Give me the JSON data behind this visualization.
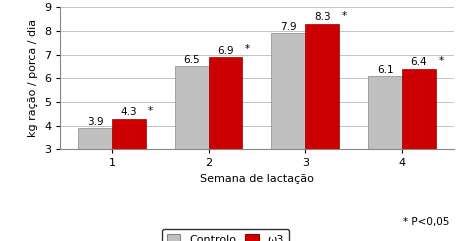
{
  "categories": [
    "1",
    "2",
    "3",
    "4"
  ],
  "xlabel": "Semana de lactação",
  "ylabel": "kg ração / porca / dia",
  "ylim": [
    3,
    9
  ],
  "yticks": [
    3,
    4,
    5,
    6,
    7,
    8,
    9
  ],
  "controlo": [
    3.9,
    6.5,
    7.9,
    6.1
  ],
  "omega3": [
    4.3,
    6.9,
    8.3,
    6.4
  ],
  "bar_color_controlo": "#c0c0c0",
  "bar_color_omega3": "#cc0000",
  "bar_width": 0.35,
  "legend_controlo": "Controlo",
  "legend_omega3": "ω3",
  "star_label": "* P<0,05",
  "value_fontsize": 7.5,
  "axis_fontsize": 8,
  "tick_fontsize": 8,
  "legend_fontsize": 8,
  "background_color": "#ffffff"
}
